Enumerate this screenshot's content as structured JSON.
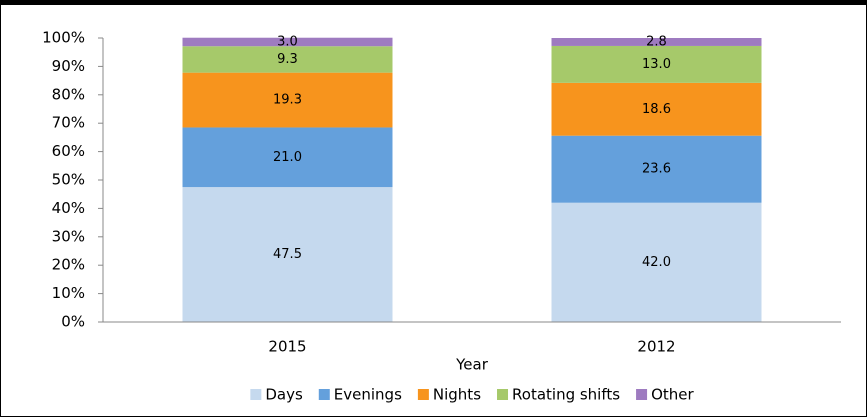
{
  "chart_data": {
    "type": "stacked_bar",
    "x_label": "Year",
    "categories": [
      "2015",
      "2012"
    ],
    "series": [
      {
        "name": "Days",
        "color": "#c5d9ee",
        "values": [
          47.5,
          42.0
        ],
        "value_labels": [
          "47.5",
          "42.0"
        ]
      },
      {
        "name": "Evenings",
        "color": "#64a0dc",
        "values": [
          21.0,
          23.6
        ],
        "value_labels": [
          "21.0",
          "23.6"
        ]
      },
      {
        "name": "Nights",
        "color": "#f7941d",
        "values": [
          19.3,
          18.6
        ],
        "value_labels": [
          "19.3",
          "18.6"
        ]
      },
      {
        "name": "Rotating shifts",
        "color": "#a6c96a",
        "values": [
          9.3,
          13.0
        ],
        "value_labels": [
          "9.3",
          "13.0"
        ]
      },
      {
        "name": "Other",
        "color": "#9e7bc0",
        "values": [
          3.0,
          2.8
        ],
        "value_labels": [
          "3.0",
          "2.8"
        ]
      }
    ],
    "ylim": [
      0,
      100
    ],
    "yticks": [
      {
        "value": 0,
        "label": "0%"
      },
      {
        "value": 10,
        "label": "10%"
      },
      {
        "value": 20,
        "label": "20%"
      },
      {
        "value": 30,
        "label": "30%"
      },
      {
        "value": 40,
        "label": "40%"
      },
      {
        "value": 50,
        "label": "50%"
      },
      {
        "value": 60,
        "label": "60%"
      },
      {
        "value": 70,
        "label": "70%"
      },
      {
        "value": 80,
        "label": "80%"
      },
      {
        "value": 90,
        "label": "90%"
      },
      {
        "value": 100,
        "label": "100%"
      }
    ],
    "grid": false,
    "legend": "bottom"
  }
}
